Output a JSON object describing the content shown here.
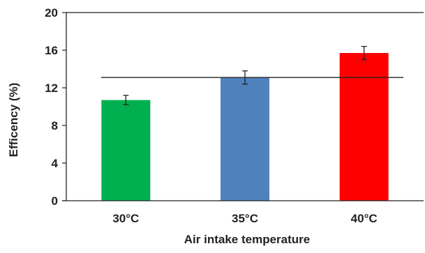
{
  "chart_data": {
    "type": "bar",
    "title": "",
    "xlabel": "Air intake temperature",
    "ylabel": "Efficency (%)",
    "categories": [
      "30°C",
      "35°C",
      "40°C"
    ],
    "values": [
      10.7,
      13.1,
      15.7
    ],
    "error": [
      0.5,
      0.7,
      0.7
    ],
    "colors": [
      "#00b050",
      "#4f81bd",
      "#ff0000"
    ],
    "ylim": [
      0,
      20
    ],
    "yticks": [
      "0",
      "4",
      "8",
      "12",
      "16",
      "20"
    ],
    "reference_line": 13.1,
    "grid": false,
    "legend": "none"
  }
}
